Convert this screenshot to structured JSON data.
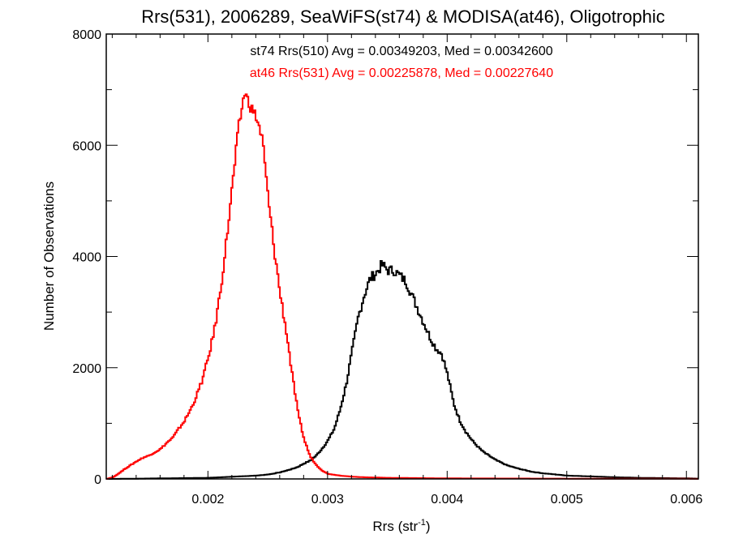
{
  "chart_data": {
    "type": "line",
    "title": "Rrs(531), 2006289, SeaWiFS(st74) & MODISA(at46), Oligotrophic",
    "xlabel": "Rrs (str",
    "xlabel_sup": "-1",
    "xlabel_close": ")",
    "ylabel": "Number of Observations",
    "xlim": [
      0.00115,
      0.0061
    ],
    "ylim": [
      0,
      8000
    ],
    "x_ticks": [
      0.002,
      0.003,
      0.004,
      0.005,
      0.006
    ],
    "x_tick_labels": [
      "0.002",
      "0.003",
      "0.004",
      "0.005",
      "0.006"
    ],
    "y_ticks": [
      0,
      2000,
      4000,
      6000,
      8000
    ],
    "y_tick_labels": [
      "0",
      "2000",
      "4000",
      "6000",
      "8000"
    ],
    "grid": false,
    "step": true,
    "annotations": [
      {
        "text": "st74 Rrs(510) Avg = 0.00349203, Med = 0.00342600",
        "color": "#000000"
      },
      {
        "text": "at46 Rrs(531) Avg = 0.00225878, Med = 0.00227640",
        "color": "#ff0000"
      }
    ],
    "series": [
      {
        "color": "#000000",
        "points": [
          [
            0.00115,
            0
          ],
          [
            0.0014,
            5
          ],
          [
            0.0016,
            10
          ],
          [
            0.0018,
            15
          ],
          [
            0.002,
            20
          ],
          [
            0.0021,
            30
          ],
          [
            0.0022,
            40
          ],
          [
            0.0023,
            50
          ],
          [
            0.0024,
            60
          ],
          [
            0.0025,
            80
          ],
          [
            0.0026,
            120
          ],
          [
            0.0027,
            180
          ],
          [
            0.00275,
            220
          ],
          [
            0.0028,
            280
          ],
          [
            0.00285,
            330
          ],
          [
            0.0029,
            420
          ],
          [
            0.00295,
            550
          ],
          [
            0.003,
            700
          ],
          [
            0.00305,
            900
          ],
          [
            0.0031,
            1250
          ],
          [
            0.00315,
            1700
          ],
          [
            0.0032,
            2300
          ],
          [
            0.00325,
            2900
          ],
          [
            0.0033,
            3300
          ],
          [
            0.00335,
            3600
          ],
          [
            0.0034,
            3700
          ],
          [
            0.00345,
            3850
          ],
          [
            0.0035,
            3750
          ],
          [
            0.00355,
            3750
          ],
          [
            0.0036,
            3650
          ],
          [
            0.00365,
            3550
          ],
          [
            0.0037,
            3300
          ],
          [
            0.00375,
            3050
          ],
          [
            0.0038,
            2800
          ],
          [
            0.00385,
            2550
          ],
          [
            0.0039,
            2350
          ],
          [
            0.00395,
            2250
          ],
          [
            0.004,
            1850
          ],
          [
            0.00405,
            1350
          ],
          [
            0.0041,
            1050
          ],
          [
            0.00415,
            850
          ],
          [
            0.0042,
            700
          ],
          [
            0.00425,
            580
          ],
          [
            0.0043,
            480
          ],
          [
            0.0044,
            340
          ],
          [
            0.0045,
            240
          ],
          [
            0.0046,
            180
          ],
          [
            0.0047,
            130
          ],
          [
            0.0048,
            100
          ],
          [
            0.0049,
            80
          ],
          [
            0.005,
            60
          ],
          [
            0.0052,
            45
          ],
          [
            0.0054,
            30
          ],
          [
            0.0056,
            20
          ],
          [
            0.0058,
            15
          ],
          [
            0.006,
            10
          ],
          [
            0.0061,
            5
          ]
        ]
      },
      {
        "color": "#ff0000",
        "points": [
          [
            0.00115,
            0
          ],
          [
            0.0012,
            30
          ],
          [
            0.00125,
            100
          ],
          [
            0.0013,
            180
          ],
          [
            0.00135,
            250
          ],
          [
            0.0014,
            320
          ],
          [
            0.00145,
            380
          ],
          [
            0.0015,
            420
          ],
          [
            0.00155,
            480
          ],
          [
            0.0016,
            540
          ],
          [
            0.00165,
            650
          ],
          [
            0.0017,
            740
          ],
          [
            0.00175,
            900
          ],
          [
            0.0018,
            1050
          ],
          [
            0.00185,
            1250
          ],
          [
            0.0019,
            1500
          ],
          [
            0.00195,
            1800
          ],
          [
            0.002,
            2200
          ],
          [
            0.00205,
            2700
          ],
          [
            0.0021,
            3400
          ],
          [
            0.00215,
            4300
          ],
          [
            0.0022,
            5300
          ],
          [
            0.00225,
            6300
          ],
          [
            0.0023,
            6950
          ],
          [
            0.00235,
            6700
          ],
          [
            0.0024,
            6500
          ],
          [
            0.00245,
            6100
          ],
          [
            0.0025,
            5000
          ],
          [
            0.00255,
            4100
          ],
          [
            0.0026,
            3300
          ],
          [
            0.00265,
            2650
          ],
          [
            0.0027,
            1850
          ],
          [
            0.00275,
            1150
          ],
          [
            0.0028,
            700
          ],
          [
            0.00285,
            400
          ],
          [
            0.0029,
            250
          ],
          [
            0.00295,
            150
          ],
          [
            0.003,
            90
          ],
          [
            0.0031,
            60
          ],
          [
            0.0032,
            40
          ],
          [
            0.0033,
            30
          ],
          [
            0.0035,
            20
          ],
          [
            0.004,
            10
          ],
          [
            0.005,
            5
          ],
          [
            0.0061,
            2
          ]
        ]
      }
    ]
  }
}
